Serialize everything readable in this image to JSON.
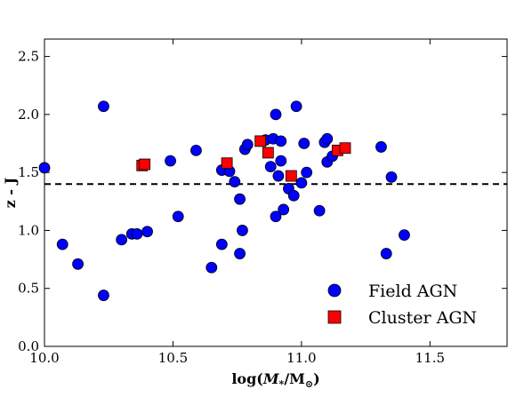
{
  "chart_data": {
    "type": "scatter",
    "xlabel_main": "log(",
    "xlabel_sym": "M",
    "xlabel_sub": "*",
    "xlabel_mid": "/M",
    "xlabel_sub2": "⊙",
    "xlabel_end": ")",
    "ylabel": "z - J",
    "xlim": [
      10.0,
      11.8
    ],
    "ylim": [
      0.0,
      2.65
    ],
    "xticks": [
      {
        "value": 10.0,
        "label": "10.0"
      },
      {
        "value": 10.5,
        "label": "10.5"
      },
      {
        "value": 11.0,
        "label": "11.0"
      },
      {
        "value": 11.5,
        "label": "11.5"
      }
    ],
    "yticks": [
      {
        "value": 0.0,
        "label": "0.0"
      },
      {
        "value": 0.5,
        "label": "0.5"
      },
      {
        "value": 1.0,
        "label": "1.0"
      },
      {
        "value": 1.5,
        "label": "1.5"
      },
      {
        "value": 2.0,
        "label": "2.0"
      },
      {
        "value": 2.5,
        "label": "2.5"
      }
    ],
    "hline": {
      "y": 1.4,
      "style": "dashed",
      "color": "#000000"
    },
    "legend_position": "lower-right",
    "series": [
      {
        "name": "Field AGN",
        "marker": "circle",
        "color": "#0000ff",
        "points": [
          [
            10.0,
            1.54
          ],
          [
            10.07,
            0.88
          ],
          [
            10.13,
            0.71
          ],
          [
            10.23,
            2.07
          ],
          [
            10.23,
            0.44
          ],
          [
            10.3,
            0.92
          ],
          [
            10.34,
            0.97
          ],
          [
            10.36,
            0.97
          ],
          [
            10.4,
            0.99
          ],
          [
            10.49,
            1.6
          ],
          [
            10.52,
            1.12
          ],
          [
            10.59,
            1.69
          ],
          [
            10.65,
            0.68
          ],
          [
            10.69,
            0.88
          ],
          [
            10.69,
            1.52
          ],
          [
            10.72,
            1.51
          ],
          [
            10.74,
            1.42
          ],
          [
            10.76,
            0.8
          ],
          [
            10.77,
            1.0
          ],
          [
            10.76,
            1.27
          ],
          [
            10.78,
            1.7
          ],
          [
            10.79,
            1.74
          ],
          [
            10.86,
            1.78
          ],
          [
            10.88,
            1.55
          ],
          [
            10.89,
            1.79
          ],
          [
            10.9,
            1.12
          ],
          [
            10.9,
            2.0
          ],
          [
            10.92,
            1.77
          ],
          [
            10.92,
            1.6
          ],
          [
            10.93,
            1.18
          ],
          [
            10.91,
            1.47
          ],
          [
            10.95,
            1.36
          ],
          [
            10.97,
            1.3
          ],
          [
            10.98,
            2.07
          ],
          [
            11.0,
            1.41
          ],
          [
            11.01,
            1.75
          ],
          [
            11.02,
            1.5
          ],
          [
            11.07,
            1.17
          ],
          [
            11.09,
            1.76
          ],
          [
            11.1,
            1.79
          ],
          [
            11.1,
            1.59
          ],
          [
            11.12,
            1.64
          ],
          [
            11.31,
            1.72
          ],
          [
            11.33,
            0.8
          ],
          [
            11.35,
            1.46
          ],
          [
            11.4,
            0.96
          ]
        ]
      },
      {
        "name": "Cluster AGN",
        "marker": "square",
        "color": "#ff0000",
        "points": [
          [
            10.38,
            1.56
          ],
          [
            10.39,
            1.57
          ],
          [
            10.71,
            1.58
          ],
          [
            10.84,
            1.77
          ],
          [
            10.87,
            1.67
          ],
          [
            10.96,
            1.47
          ],
          [
            11.14,
            1.69
          ],
          [
            11.17,
            1.71
          ]
        ]
      }
    ]
  }
}
